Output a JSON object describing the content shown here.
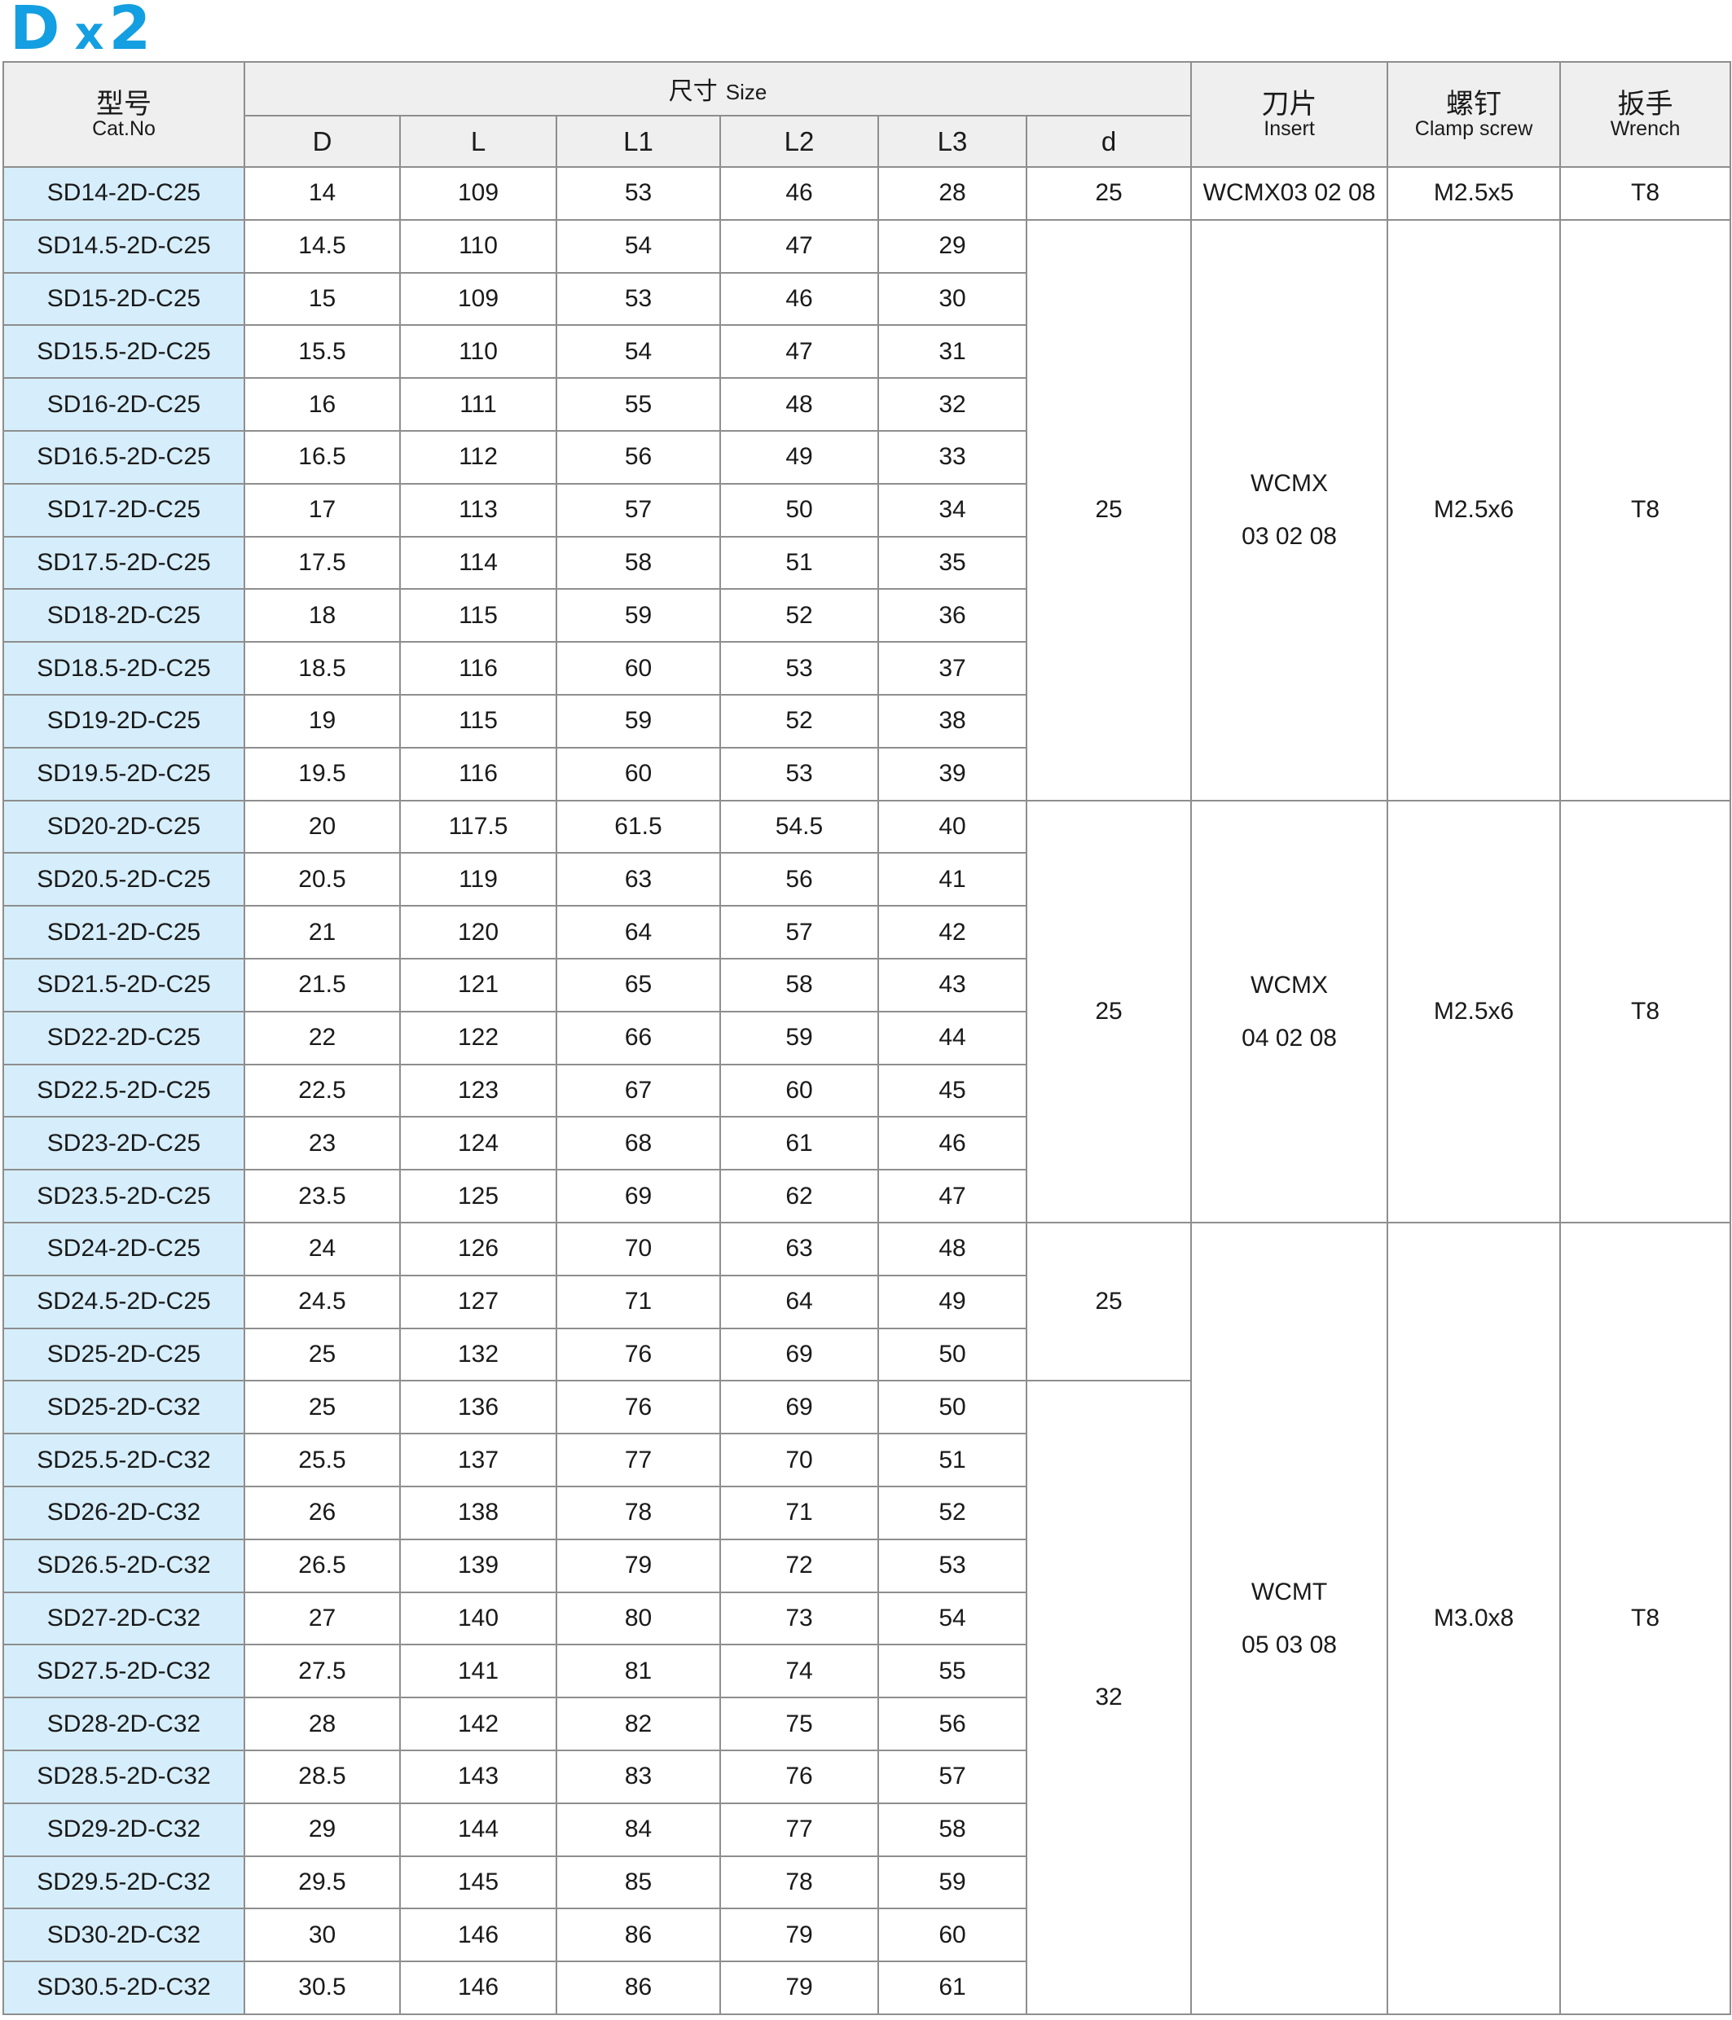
{
  "title": {
    "letter": "D",
    "mult": "x",
    "num": "2"
  },
  "header": {
    "cat_cn": "型号",
    "cat_en": "Cat.No",
    "size_cn": "尺寸",
    "size_en": "Size",
    "cols": [
      "D",
      "L",
      "L1",
      "L2",
      "L3",
      "d"
    ],
    "insert_cn": "刀片",
    "insert_en": "Insert",
    "screw_cn": "螺钉",
    "screw_en": "Clamp screw",
    "wrench_cn": "扳手",
    "wrench_en": "Wrench"
  },
  "rows": [
    {
      "cat": "SD14-2D-C25",
      "D": "14",
      "L": "109",
      "L1": "53",
      "L2": "46",
      "L3": "28"
    },
    {
      "cat": "SD14.5-2D-C25",
      "D": "14.5",
      "L": "110",
      "L1": "54",
      "L2": "47",
      "L3": "29"
    },
    {
      "cat": "SD15-2D-C25",
      "D": "15",
      "L": "109",
      "L1": "53",
      "L2": "46",
      "L3": "30"
    },
    {
      "cat": "SD15.5-2D-C25",
      "D": "15.5",
      "L": "110",
      "L1": "54",
      "L2": "47",
      "L3": "31"
    },
    {
      "cat": "SD16-2D-C25",
      "D": "16",
      "L": "111",
      "L1": "55",
      "L2": "48",
      "L3": "32"
    },
    {
      "cat": "SD16.5-2D-C25",
      "D": "16.5",
      "L": "112",
      "L1": "56",
      "L2": "49",
      "L3": "33"
    },
    {
      "cat": "SD17-2D-C25",
      "D": "17",
      "L": "113",
      "L1": "57",
      "L2": "50",
      "L3": "34"
    },
    {
      "cat": "SD17.5-2D-C25",
      "D": "17.5",
      "L": "114",
      "L1": "58",
      "L2": "51",
      "L3": "35"
    },
    {
      "cat": "SD18-2D-C25",
      "D": "18",
      "L": "115",
      "L1": "59",
      "L2": "52",
      "L3": "36"
    },
    {
      "cat": "SD18.5-2D-C25",
      "D": "18.5",
      "L": "116",
      "L1": "60",
      "L2": "53",
      "L3": "37"
    },
    {
      "cat": "SD19-2D-C25",
      "D": "19",
      "L": "115",
      "L1": "59",
      "L2": "52",
      "L3": "38"
    },
    {
      "cat": "SD19.5-2D-C25",
      "D": "19.5",
      "L": "116",
      "L1": "60",
      "L2": "53",
      "L3": "39"
    },
    {
      "cat": "SD20-2D-C25",
      "D": "20",
      "L": "117.5",
      "L1": "61.5",
      "L2": "54.5",
      "L3": "40"
    },
    {
      "cat": "SD20.5-2D-C25",
      "D": "20.5",
      "L": "119",
      "L1": "63",
      "L2": "56",
      "L3": "41"
    },
    {
      "cat": "SD21-2D-C25",
      "D": "21",
      "L": "120",
      "L1": "64",
      "L2": "57",
      "L3": "42"
    },
    {
      "cat": "SD21.5-2D-C25",
      "D": "21.5",
      "L": "121",
      "L1": "65",
      "L2": "58",
      "L3": "43"
    },
    {
      "cat": "SD22-2D-C25",
      "D": "22",
      "L": "122",
      "L1": "66",
      "L2": "59",
      "L3": "44"
    },
    {
      "cat": "SD22.5-2D-C25",
      "D": "22.5",
      "L": "123",
      "L1": "67",
      "L2": "60",
      "L3": "45"
    },
    {
      "cat": "SD23-2D-C25",
      "D": "23",
      "L": "124",
      "L1": "68",
      "L2": "61",
      "L3": "46"
    },
    {
      "cat": "SD23.5-2D-C25",
      "D": "23.5",
      "L": "125",
      "L1": "69",
      "L2": "62",
      "L3": "47"
    },
    {
      "cat": "SD24-2D-C25",
      "D": "24",
      "L": "126",
      "L1": "70",
      "L2": "63",
      "L3": "48"
    },
    {
      "cat": "SD24.5-2D-C25",
      "D": "24.5",
      "L": "127",
      "L1": "71",
      "L2": "64",
      "L3": "49"
    },
    {
      "cat": "SD25-2D-C25",
      "D": "25",
      "L": "132",
      "L1": "76",
      "L2": "69",
      "L3": "50"
    },
    {
      "cat": "SD25-2D-C32",
      "D": "25",
      "L": "136",
      "L1": "76",
      "L2": "69",
      "L3": "50"
    },
    {
      "cat": "SD25.5-2D-C32",
      "D": "25.5",
      "L": "137",
      "L1": "77",
      "L2": "70",
      "L3": "51"
    },
    {
      "cat": "SD26-2D-C32",
      "D": "26",
      "L": "138",
      "L1": "78",
      "L2": "71",
      "L3": "52"
    },
    {
      "cat": "SD26.5-2D-C32",
      "D": "26.5",
      "L": "139",
      "L1": "79",
      "L2": "72",
      "L3": "53"
    },
    {
      "cat": "SD27-2D-C32",
      "D": "27",
      "L": "140",
      "L1": "80",
      "L2": "73",
      "L3": "54"
    },
    {
      "cat": "SD27.5-2D-C32",
      "D": "27.5",
      "L": "141",
      "L1": "81",
      "L2": "74",
      "L3": "55"
    },
    {
      "cat": "SD28-2D-C32",
      "D": "28",
      "L": "142",
      "L1": "82",
      "L2": "75",
      "L3": "56"
    },
    {
      "cat": "SD28.5-2D-C32",
      "D": "28.5",
      "L": "143",
      "L1": "83",
      "L2": "76",
      "L3": "57"
    },
    {
      "cat": "SD29-2D-C32",
      "D": "29",
      "L": "144",
      "L1": "84",
      "L2": "77",
      "L3": "58"
    },
    {
      "cat": "SD29.5-2D-C32",
      "D": "29.5",
      "L": "145",
      "L1": "85",
      "L2": "78",
      "L3": "59"
    },
    {
      "cat": "SD30-2D-C32",
      "D": "30",
      "L": "146",
      "L1": "86",
      "L2": "79",
      "L3": "60"
    },
    {
      "cat": "SD30.5-2D-C32",
      "D": "30.5",
      "L": "146",
      "L1": "86",
      "L2": "79",
      "L3": "61"
    }
  ],
  "d_groups": [
    {
      "value": "25",
      "rows": 1
    },
    {
      "value": "25",
      "rows": 11
    },
    {
      "value": "25",
      "rows": 8
    },
    {
      "value": "25",
      "rows": 3
    },
    {
      "value": "32",
      "rows": 12
    }
  ],
  "tool_groups": [
    {
      "insert_lines": [
        "WCMX03 02 08"
      ],
      "screw": "M2.5x5",
      "wrench": "T8",
      "rows": 1
    },
    {
      "insert_lines": [
        "WCMX",
        "03 02 08"
      ],
      "screw": "M2.5x6",
      "wrench": "T8",
      "rows": 11
    },
    {
      "insert_lines": [
        "WCMX",
        "04 02 08"
      ],
      "screw": "M2.5x6",
      "wrench": "T8",
      "rows": 8
    },
    {
      "insert_lines": [
        "WCMT",
        "05 03 08"
      ],
      "screw": "M3.0x8",
      "wrench": "T8",
      "rows": 15
    }
  ],
  "colors": {
    "accent": "#139fe1",
    "cat_bg": "#d6eefb",
    "header_bg": "#efefef",
    "border": "#8e8e8e"
  }
}
